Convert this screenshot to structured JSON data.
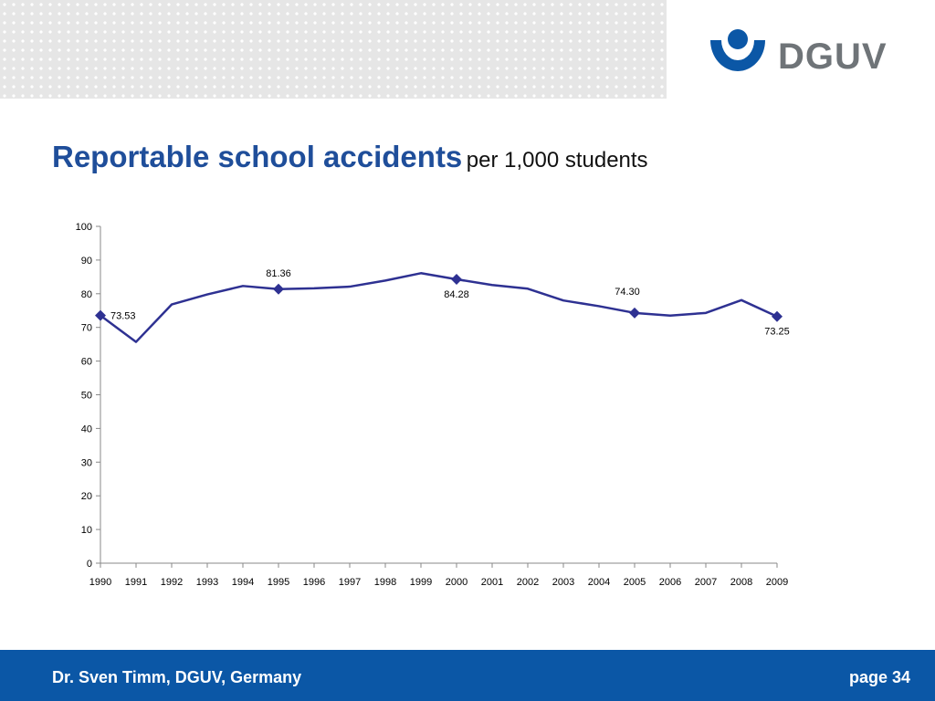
{
  "logo": {
    "text": "DGUV"
  },
  "title": {
    "main": "Reportable school accidents",
    "sub": "per 1,000 students"
  },
  "colors": {
    "line": "#2e3192",
    "marker": "#2e3192",
    "title": "#1f4e9a",
    "footer": "#0b57a6"
  },
  "chart_data": {
    "type": "line",
    "title": "",
    "xlabel": "",
    "ylabel": "",
    "ylim": [
      0,
      100
    ],
    "yticks": [
      0,
      10,
      20,
      30,
      40,
      50,
      60,
      70,
      80,
      90,
      100
    ],
    "grid": false,
    "legend": "none",
    "categories": [
      "1990",
      "1991",
      "1992",
      "1993",
      "1994",
      "1995",
      "1996",
      "1997",
      "1998",
      "1999",
      "2000",
      "2001",
      "2002",
      "2003",
      "2004",
      "2005",
      "2006",
      "2007",
      "2008",
      "2009"
    ],
    "values": [
      73.53,
      65.7,
      76.8,
      79.8,
      82.3,
      81.36,
      81.6,
      82.1,
      83.9,
      86.1,
      84.28,
      82.6,
      81.5,
      78.0,
      76.3,
      74.3,
      73.5,
      74.3,
      78.1,
      73.25
    ],
    "markers": [
      {
        "category": "1990",
        "value": 73.53,
        "label": "73.53",
        "label_pos": "right"
      },
      {
        "category": "1995",
        "value": 81.36,
        "label": "81.36",
        "label_pos": "above"
      },
      {
        "category": "2000",
        "value": 84.28,
        "label": "84.28",
        "label_pos": "below"
      },
      {
        "category": "2005",
        "value": 74.3,
        "label": "74.30",
        "label_pos": "above-left"
      },
      {
        "category": "2009",
        "value": 73.25,
        "label": "73.25",
        "label_pos": "below"
      }
    ]
  },
  "footer": {
    "author": "Dr. Sven Timm, DGUV, Germany",
    "page": "page 34"
  }
}
